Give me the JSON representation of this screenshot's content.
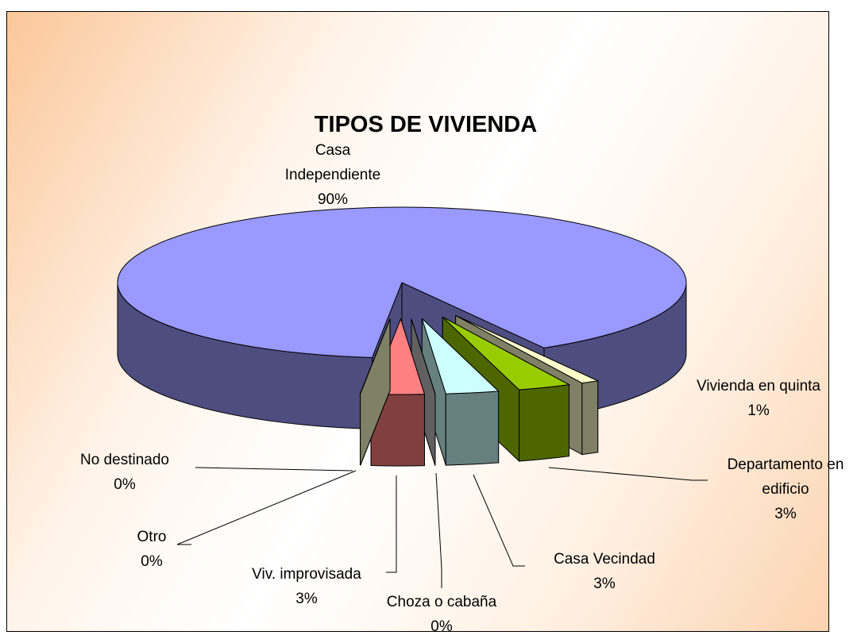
{
  "chart_data": {
    "type": "pie3d",
    "title": "TIPOS DE VIVIENDA",
    "categories": [
      "Casa Independiente",
      "Vivienda en quinta",
      "Departamento en edificio",
      "Casa Vecindad",
      "Choza o cabaña",
      "Viv. improvisada",
      "Otro",
      "No destinado"
    ],
    "values": [
      90,
      1,
      3,
      3,
      0,
      3,
      0,
      0
    ],
    "value_labels": [
      "90%",
      "1%",
      "3%",
      "3%",
      "0%",
      "3%",
      "0%",
      "0%"
    ],
    "colors": [
      "#9999ff",
      "#ffffcc",
      "#99cc00",
      "#ccffff",
      "#c0c0c0",
      "#ff8080",
      "#808080",
      "#ffffcc"
    ]
  }
}
